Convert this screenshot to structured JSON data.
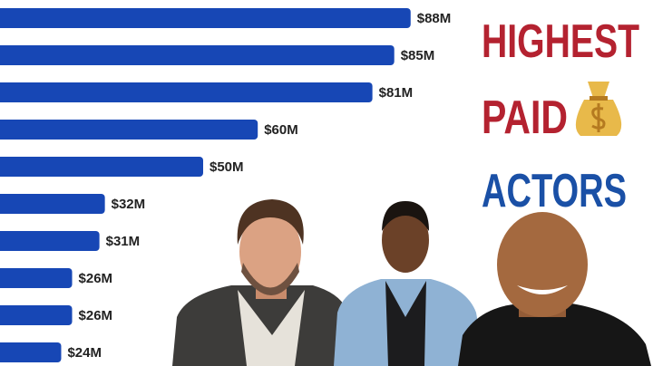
{
  "chart_data": {
    "type": "bar",
    "orientation": "horizontal",
    "title_lines": [
      "HIGHEST",
      "PAID",
      "ACTORS"
    ],
    "categories": [
      null,
      null,
      null,
      null,
      null,
      null,
      null,
      null,
      null,
      null
    ],
    "values": [
      88,
      85,
      81,
      60,
      50,
      32,
      31,
      26,
      26,
      24
    ],
    "value_labels": [
      "$88M",
      "$85M",
      "$81M",
      "$60M",
      "$50M",
      "$32M",
      "$31M",
      "$26M",
      "$26M",
      "$24M"
    ],
    "color": "#1747b5"
  }
}
